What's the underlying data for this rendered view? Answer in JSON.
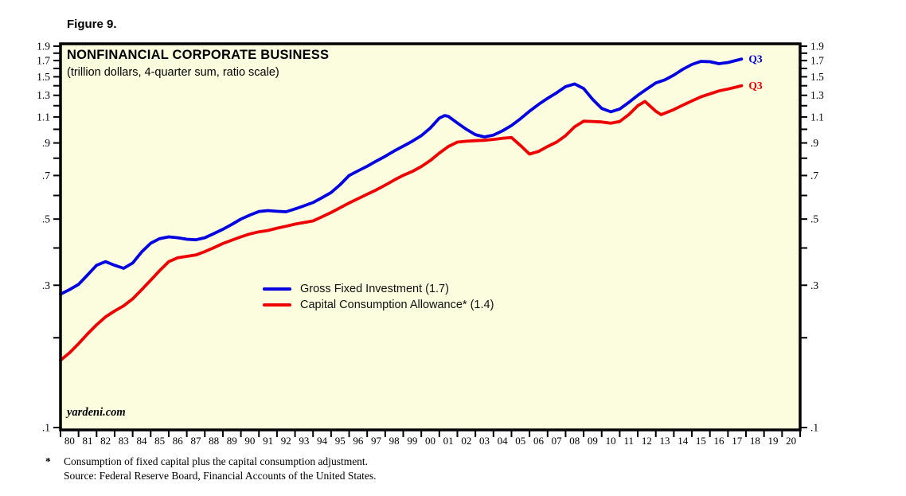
{
  "figure": {
    "label": "Figure 9."
  },
  "chart": {
    "title": "NONFINANCIAL CORPORATE BUSINESS",
    "subtitle": "(trillion dollars, 4-quarter sum, ratio scale)",
    "watermark": "yardeni.com"
  },
  "legend": {
    "items": [
      {
        "label": "Gross Fixed Investment (1.7)",
        "color": "#0000E0"
      },
      {
        "label": "Capital Consumption Allowance* (1.4)",
        "color": "#EE0000"
      }
    ]
  },
  "footnote": {
    "marker": "*",
    "line1": "Consumption of fixed capital plus the capital consumption adjustment.",
    "line2": "Source: Federal Reserve Board, Financial Accounts of the United States."
  },
  "chart_data": {
    "type": "line",
    "scale": "log",
    "title": "NONFINANCIAL CORPORATE BUSINESS",
    "subtitle": "(trillion dollars, 4-quarter sum, ratio scale)",
    "background": "#FCFCDE",
    "frame_color": "#000000",
    "ylim": [
      0.1,
      1.9
    ],
    "xlim": [
      1980,
      2021
    ],
    "grid": false,
    "legend_position": "center",
    "y_axis": {
      "sides": "both",
      "major": [
        {
          "v": 1.9,
          "label": "1.9"
        },
        {
          "v": 1.7,
          "label": "1.7"
        },
        {
          "v": 1.5,
          "label": "1.5"
        },
        {
          "v": 1.3,
          "label": "1.3"
        },
        {
          "v": 1.1,
          "label": "1.1"
        },
        {
          "v": 0.9,
          "label": ".9"
        },
        {
          "v": 0.7,
          "label": ".7"
        },
        {
          "v": 0.5,
          "label": ".5"
        },
        {
          "v": 0.3,
          "label": ".3"
        },
        {
          "v": 0.1,
          "label": ".1"
        }
      ],
      "minor": [
        1.8,
        1.6,
        1.4,
        1.2,
        1.0,
        0.8,
        0.6,
        0.4,
        0.2
      ]
    },
    "x_axis": {
      "start": 1980,
      "end": 2021,
      "labels": [
        "80",
        "81",
        "82",
        "83",
        "84",
        "85",
        "86",
        "87",
        "88",
        "89",
        "90",
        "91",
        "92",
        "93",
        "94",
        "95",
        "96",
        "97",
        "98",
        "99",
        "00",
        "01",
        "02",
        "03",
        "04",
        "05",
        "06",
        "07",
        "08",
        "09",
        "10",
        "11",
        "12",
        "13",
        "14",
        "15",
        "16",
        "17",
        "18",
        "19",
        "20"
      ]
    },
    "series": [
      {
        "name": "Gross Fixed Investment",
        "color": "#0000E0",
        "end_label": "Q3",
        "latest": "1.7",
        "points": [
          [
            1980.0,
            0.28
          ],
          [
            1980.5,
            0.29
          ],
          [
            1981.0,
            0.302
          ],
          [
            1981.5,
            0.325
          ],
          [
            1982.0,
            0.35
          ],
          [
            1982.5,
            0.36
          ],
          [
            1983.0,
            0.35
          ],
          [
            1983.5,
            0.342
          ],
          [
            1984.0,
            0.356
          ],
          [
            1984.5,
            0.388
          ],
          [
            1985.0,
            0.415
          ],
          [
            1985.5,
            0.43
          ],
          [
            1986.0,
            0.436
          ],
          [
            1986.5,
            0.433
          ],
          [
            1987.0,
            0.428
          ],
          [
            1987.5,
            0.426
          ],
          [
            1988.0,
            0.433
          ],
          [
            1988.5,
            0.447
          ],
          [
            1989.0,
            0.462
          ],
          [
            1989.5,
            0.48
          ],
          [
            1990.0,
            0.5
          ],
          [
            1990.5,
            0.516
          ],
          [
            1991.0,
            0.53
          ],
          [
            1991.5,
            0.534
          ],
          [
            1992.0,
            0.531
          ],
          [
            1992.5,
            0.529
          ],
          [
            1993.0,
            0.541
          ],
          [
            1993.5,
            0.554
          ],
          [
            1994.0,
            0.568
          ],
          [
            1994.5,
            0.59
          ],
          [
            1995.0,
            0.614
          ],
          [
            1995.5,
            0.652
          ],
          [
            1996.0,
            0.7
          ],
          [
            1996.5,
            0.726
          ],
          [
            1997.0,
            0.752
          ],
          [
            1997.5,
            0.782
          ],
          [
            1998.0,
            0.812
          ],
          [
            1998.5,
            0.846
          ],
          [
            1999.0,
            0.878
          ],
          [
            1999.5,
            0.912
          ],
          [
            2000.0,
            0.952
          ],
          [
            2000.5,
            1.01
          ],
          [
            2001.0,
            1.09
          ],
          [
            2001.3,
            1.112
          ],
          [
            2001.5,
            1.105
          ],
          [
            2002.0,
            1.05
          ],
          [
            2002.5,
            1.0
          ],
          [
            2003.0,
            0.96
          ],
          [
            2003.5,
            0.943
          ],
          [
            2004.0,
            0.956
          ],
          [
            2004.5,
            0.988
          ],
          [
            2005.0,
            1.03
          ],
          [
            2005.5,
            1.085
          ],
          [
            2006.0,
            1.15
          ],
          [
            2006.5,
            1.212
          ],
          [
            2007.0,
            1.27
          ],
          [
            2007.5,
            1.325
          ],
          [
            2008.0,
            1.39
          ],
          [
            2008.5,
            1.42
          ],
          [
            2009.0,
            1.37
          ],
          [
            2009.5,
            1.26
          ],
          [
            2010.0,
            1.175
          ],
          [
            2010.5,
            1.145
          ],
          [
            2011.0,
            1.17
          ],
          [
            2011.5,
            1.23
          ],
          [
            2012.0,
            1.3
          ],
          [
            2012.5,
            1.365
          ],
          [
            2013.0,
            1.43
          ],
          [
            2013.5,
            1.465
          ],
          [
            2014.0,
            1.52
          ],
          [
            2014.5,
            1.59
          ],
          [
            2015.0,
            1.65
          ],
          [
            2015.5,
            1.69
          ],
          [
            2016.0,
            1.685
          ],
          [
            2016.5,
            1.66
          ],
          [
            2017.0,
            1.675
          ],
          [
            2017.5,
            1.705
          ],
          [
            2017.75,
            1.72
          ]
        ]
      },
      {
        "name": "Capital Consumption Allowance",
        "color": "#EE0000",
        "end_label": "Q3",
        "latest": "1.4",
        "points": [
          [
            1980.0,
            0.168
          ],
          [
            1980.5,
            0.178
          ],
          [
            1981.0,
            0.191
          ],
          [
            1981.5,
            0.206
          ],
          [
            1982.0,
            0.221
          ],
          [
            1982.5,
            0.235
          ],
          [
            1983.0,
            0.246
          ],
          [
            1983.5,
            0.256
          ],
          [
            1984.0,
            0.27
          ],
          [
            1984.5,
            0.29
          ],
          [
            1985.0,
            0.312
          ],
          [
            1985.5,
            0.336
          ],
          [
            1986.0,
            0.36
          ],
          [
            1986.5,
            0.371
          ],
          [
            1987.0,
            0.375
          ],
          [
            1987.5,
            0.379
          ],
          [
            1988.0,
            0.389
          ],
          [
            1988.5,
            0.401
          ],
          [
            1989.0,
            0.414
          ],
          [
            1989.5,
            0.425
          ],
          [
            1990.0,
            0.436
          ],
          [
            1990.5,
            0.446
          ],
          [
            1991.0,
            0.453
          ],
          [
            1991.5,
            0.458
          ],
          [
            1992.0,
            0.466
          ],
          [
            1992.5,
            0.473
          ],
          [
            1993.0,
            0.481
          ],
          [
            1993.5,
            0.487
          ],
          [
            1994.0,
            0.493
          ],
          [
            1994.5,
            0.509
          ],
          [
            1995.0,
            0.526
          ],
          [
            1995.5,
            0.546
          ],
          [
            1996.0,
            0.566
          ],
          [
            1996.5,
            0.586
          ],
          [
            1997.0,
            0.606
          ],
          [
            1997.5,
            0.626
          ],
          [
            1998.0,
            0.65
          ],
          [
            1998.5,
            0.676
          ],
          [
            1999.0,
            0.701
          ],
          [
            1999.5,
            0.722
          ],
          [
            2000.0,
            0.75
          ],
          [
            2000.5,
            0.786
          ],
          [
            2001.0,
            0.832
          ],
          [
            2001.5,
            0.876
          ],
          [
            2002.0,
            0.906
          ],
          [
            2002.5,
            0.912
          ],
          [
            2003.0,
            0.916
          ],
          [
            2003.5,
            0.919
          ],
          [
            2004.0,
            0.925
          ],
          [
            2004.5,
            0.933
          ],
          [
            2005.0,
            0.938
          ],
          [
            2005.5,
            0.882
          ],
          [
            2006.0,
            0.826
          ],
          [
            2006.5,
            0.843
          ],
          [
            2007.0,
            0.876
          ],
          [
            2007.5,
            0.906
          ],
          [
            2008.0,
            0.952
          ],
          [
            2008.5,
            1.02
          ],
          [
            2009.0,
            1.065
          ],
          [
            2009.5,
            1.062
          ],
          [
            2010.0,
            1.058
          ],
          [
            2010.5,
            1.048
          ],
          [
            2011.0,
            1.062
          ],
          [
            2011.5,
            1.12
          ],
          [
            2012.0,
            1.2
          ],
          [
            2012.4,
            1.24
          ],
          [
            2013.0,
            1.15
          ],
          [
            2013.3,
            1.12
          ],
          [
            2014.0,
            1.165
          ],
          [
            2014.5,
            1.205
          ],
          [
            2015.0,
            1.245
          ],
          [
            2015.5,
            1.285
          ],
          [
            2016.0,
            1.315
          ],
          [
            2016.5,
            1.345
          ],
          [
            2017.0,
            1.365
          ],
          [
            2017.5,
            1.388
          ],
          [
            2017.75,
            1.4
          ]
        ]
      }
    ]
  }
}
